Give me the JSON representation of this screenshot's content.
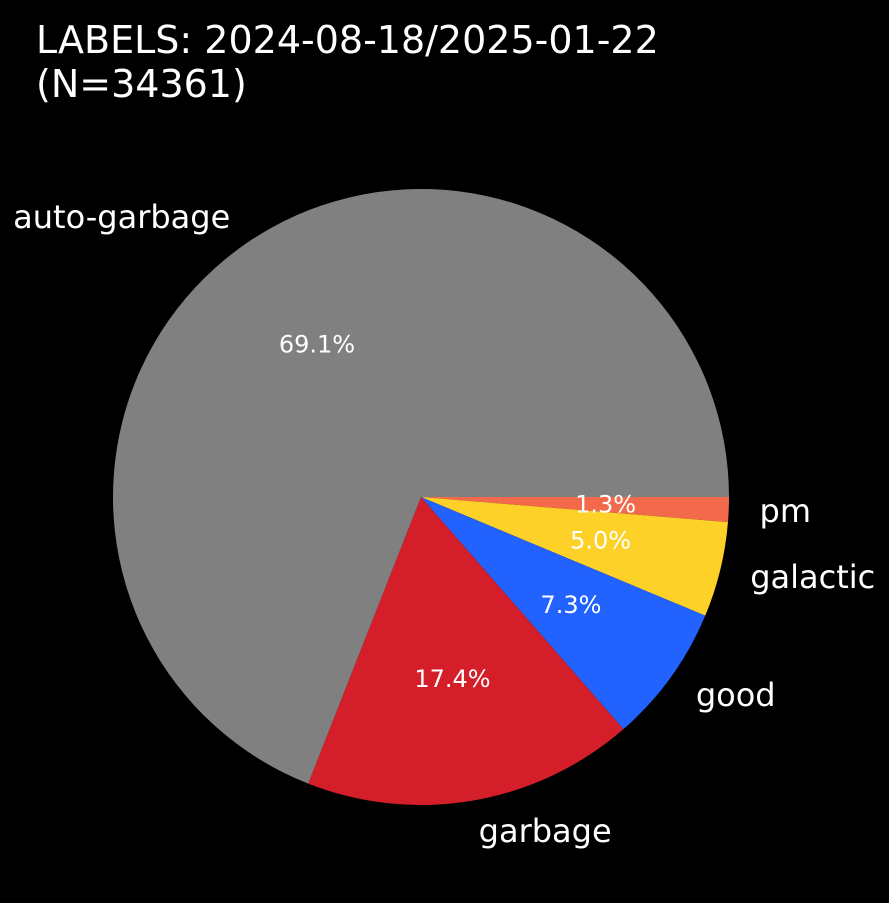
{
  "chart_data": {
    "type": "pie",
    "title_line1": "LABELS: 2024-08-18/2025-01-22",
    "title_line2": "(N=34361)",
    "slices": [
      {
        "label": "pm",
        "percent": 1.3,
        "pct_text": "1.3%",
        "color": "#f26a4b"
      },
      {
        "label": "galactic",
        "percent": 5.0,
        "pct_text": "5.0%",
        "color": "#fdd128"
      },
      {
        "label": "good",
        "percent": 7.3,
        "pct_text": "7.3%",
        "color": "#2262ff"
      },
      {
        "label": "garbage",
        "percent": 17.4,
        "pct_text": "17.4%",
        "color": "#d41f2b"
      },
      {
        "label": "auto-garbage",
        "percent": 69.1,
        "pct_text": "69.1%",
        "color": "#808080"
      }
    ],
    "start_angle_deg": 0,
    "direction": "clockwise",
    "background": "#000000",
    "text_color": "#ffffff"
  }
}
